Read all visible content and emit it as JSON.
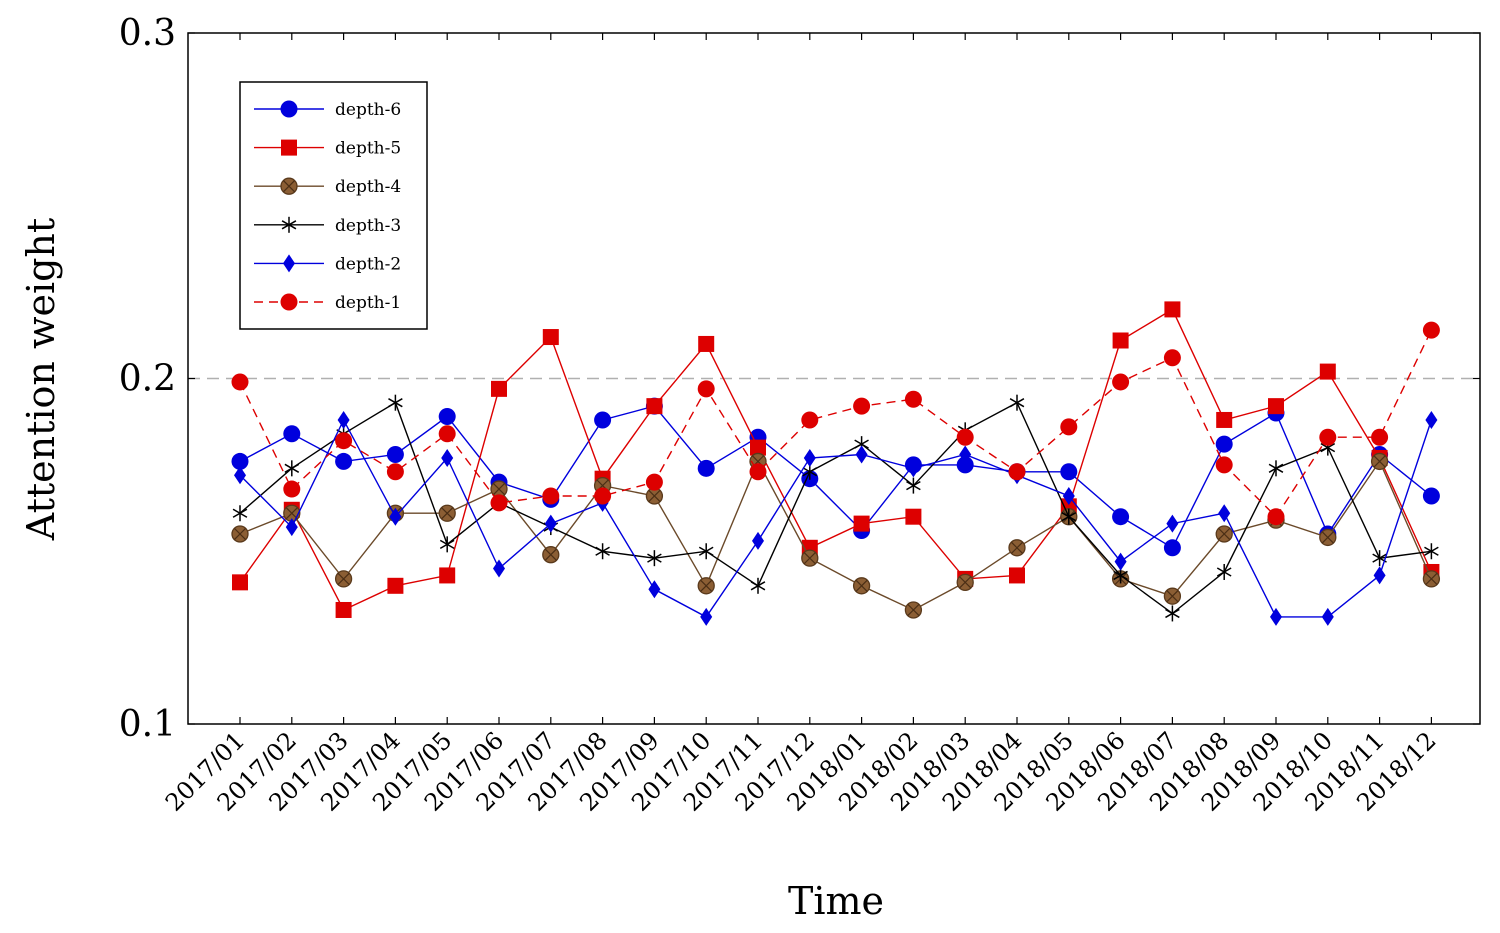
{
  "chart_data": {
    "type": "line",
    "title": "",
    "xlabel": "Time",
    "ylabel": "Attention weight",
    "ylim": [
      0.1,
      0.3
    ],
    "y_ticks": [
      "0.1",
      "0.2",
      "0.3"
    ],
    "reference_line": 0.2,
    "grid": false,
    "legend_position": "top-left",
    "categories": [
      "2017/01",
      "2017/02",
      "2017/03",
      "2017/04",
      "2017/05",
      "2017/06",
      "2017/07",
      "2017/08",
      "2017/09",
      "2017/10",
      "2017/11",
      "2017/12",
      "2018/01",
      "2018/02",
      "2018/03",
      "2018/04",
      "2018/05",
      "2018/06",
      "2018/07",
      "2018/08",
      "2018/09",
      "2018/10",
      "2018/11",
      "2018/12"
    ],
    "series": [
      {
        "name": "depth-6",
        "color": "#0000dd",
        "marker": "circle",
        "dashed": false,
        "values": [
          0.176,
          0.184,
          0.176,
          0.178,
          0.189,
          0.17,
          0.165,
          0.188,
          0.192,
          0.174,
          0.183,
          0.171,
          0.156,
          0.175,
          0.175,
          0.173,
          0.173,
          0.16,
          0.151,
          0.181,
          0.19,
          0.155,
          0.178,
          0.166
        ]
      },
      {
        "name": "depth-5",
        "color": "#dd0000",
        "marker": "square",
        "dashed": false,
        "values": [
          0.141,
          0.162,
          0.133,
          0.14,
          0.143,
          0.197,
          0.212,
          0.171,
          0.192,
          0.21,
          0.18,
          0.151,
          0.158,
          0.16,
          0.142,
          0.143,
          0.163,
          0.211,
          0.22,
          0.188,
          0.192,
          0.202,
          0.177,
          0.144
        ]
      },
      {
        "name": "depth-4",
        "color": "#6b4a2a",
        "marker": "circle-x",
        "dashed": false,
        "values": [
          0.155,
          0.161,
          0.142,
          0.161,
          0.161,
          0.168,
          0.149,
          0.169,
          0.166,
          0.14,
          0.176,
          0.148,
          0.14,
          0.133,
          0.141,
          0.151,
          0.16,
          0.142,
          0.137,
          0.155,
          0.159,
          0.154,
          0.176,
          0.142
        ]
      },
      {
        "name": "depth-3",
        "color": "#000000",
        "marker": "star",
        "dashed": false,
        "values": [
          0.161,
          0.174,
          0.184,
          0.193,
          0.152,
          0.164,
          0.157,
          0.15,
          0.148,
          0.15,
          0.14,
          0.173,
          0.181,
          0.169,
          0.185,
          0.193,
          0.16,
          0.143,
          0.132,
          0.144,
          0.174,
          0.18,
          0.148,
          0.15
        ]
      },
      {
        "name": "depth-2",
        "color": "#0000dd",
        "marker": "diamond",
        "dashed": false,
        "values": [
          0.172,
          0.157,
          0.188,
          0.16,
          0.177,
          0.145,
          0.158,
          0.164,
          0.139,
          0.131,
          0.153,
          0.177,
          0.178,
          0.174,
          0.178,
          0.172,
          0.166,
          0.147,
          0.158,
          0.161,
          0.131,
          0.131,
          0.143,
          0.188
        ]
      },
      {
        "name": "depth-1",
        "color": "#dd0000",
        "marker": "circle",
        "dashed": true,
        "values": [
          0.199,
          0.168,
          0.182,
          0.173,
          0.184,
          0.164,
          0.166,
          0.166,
          0.17,
          0.197,
          0.173,
          0.188,
          0.192,
          0.194,
          0.183,
          0.173,
          0.186,
          0.199,
          0.206,
          0.175,
          0.16,
          0.183,
          0.183,
          0.214
        ]
      }
    ]
  }
}
